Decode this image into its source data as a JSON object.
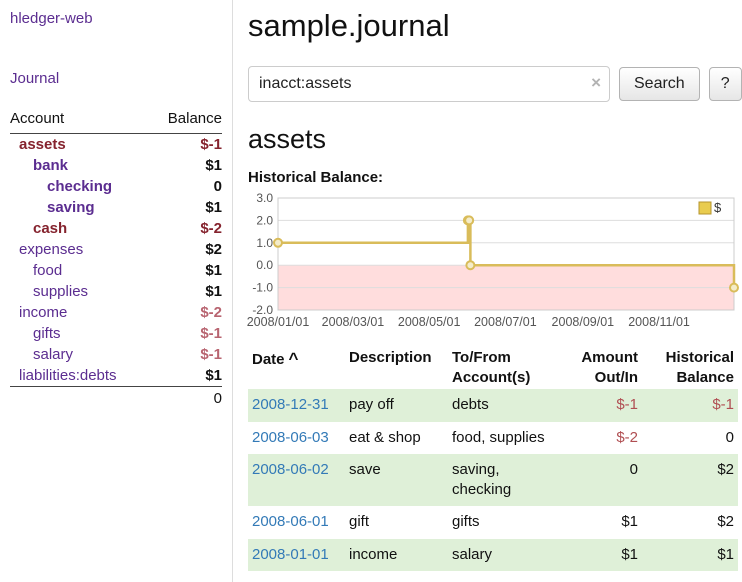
{
  "sidebar": {
    "app_title": "hledger-web",
    "journal_link": "Journal",
    "accounts": {
      "header_account": "Account",
      "header_balance": "Balance",
      "rows": [
        {
          "name": "assets",
          "balance": "$-1",
          "indent": 0,
          "name_class": "acct-sel",
          "bal_class": "bal-neg-strong"
        },
        {
          "name": "bank",
          "balance": "$1",
          "indent": 1,
          "name_class": "acct-bold",
          "bal_class": "bal"
        },
        {
          "name": "checking",
          "balance": "0",
          "indent": 2,
          "name_class": "acct-bold",
          "bal_class": "bal"
        },
        {
          "name": "saving",
          "balance": "$1",
          "indent": 2,
          "name_class": "acct-bold",
          "bal_class": "bal"
        },
        {
          "name": "cash",
          "balance": "$-2",
          "indent": 1,
          "name_class": "acct-sel",
          "bal_class": "bal-neg-strong"
        },
        {
          "name": "expenses",
          "balance": "$2",
          "indent": 0,
          "name_class": "acct",
          "bal_class": "bal"
        },
        {
          "name": "food",
          "balance": "$1",
          "indent": 1,
          "name_class": "acct",
          "bal_class": "bal"
        },
        {
          "name": "supplies",
          "balance": "$1",
          "indent": 1,
          "name_class": "acct",
          "bal_class": "bal"
        },
        {
          "name": "income",
          "balance": "$-2",
          "indent": 0,
          "name_class": "acct",
          "bal_class": "bal-neg"
        },
        {
          "name": "gifts",
          "balance": "$-1",
          "indent": 1,
          "name_class": "acct",
          "bal_class": "bal-neg"
        },
        {
          "name": "salary",
          "balance": "$-1",
          "indent": 1,
          "name_class": "acct",
          "bal_class": "bal-neg"
        },
        {
          "name": "liabilities:debts",
          "balance": "$1",
          "indent": 0,
          "name_class": "acct",
          "bal_class": "bal"
        }
      ],
      "total": "0"
    }
  },
  "main": {
    "title": "sample.journal",
    "search": {
      "value": "inacct:assets",
      "clear_label": "×",
      "button_label": "Search",
      "help_label": "?"
    },
    "account_heading": "assets",
    "chart_label": "Historical Balance:"
  },
  "chart_data": {
    "type": "line",
    "step": true,
    "title": "Historical Balance:",
    "series": [
      {
        "name": "$",
        "points": [
          {
            "date": "2008-01-01",
            "day": 1,
            "value": 1
          },
          {
            "date": "2008-06-01",
            "day": 153,
            "value": 2
          },
          {
            "date": "2008-06-02",
            "day": 154,
            "value": 2
          },
          {
            "date": "2008-06-03",
            "day": 155,
            "value": 0
          },
          {
            "date": "2008-12-31",
            "day": 366,
            "value": -1
          }
        ]
      }
    ],
    "ylim": [
      -2,
      3
    ],
    "yticks": [
      3.0,
      2.0,
      1.0,
      0.0,
      -1.0,
      -2.0
    ],
    "xlim_days": [
      1,
      366
    ],
    "xticks": [
      {
        "label": "2008/01/01",
        "day": 1
      },
      {
        "label": "2008/03/01",
        "day": 61
      },
      {
        "label": "2008/05/01",
        "day": 122
      },
      {
        "label": "2008/07/01",
        "day": 183
      },
      {
        "label": "2008/09/01",
        "day": 245
      },
      {
        "label": "2008/11/01",
        "day": 306
      }
    ],
    "legend_position": "top-right",
    "grid": true,
    "line_color": "#d9bc5a",
    "marker_fill": "#f4ecca",
    "legend_fill": "#e9cc4f",
    "legend_stroke": "#b5952f",
    "negative_region_color": "#ffdddd"
  },
  "register": {
    "sort_caret": "^",
    "headers": [
      {
        "lines": [
          "Date"
        ],
        "align": "left",
        "sorted": true
      },
      {
        "lines": [
          "Description"
        ],
        "align": "left",
        "sorted": false
      },
      {
        "lines": [
          "To/From",
          "Account(s)"
        ],
        "align": "left",
        "sorted": false
      },
      {
        "lines": [
          "Amount",
          "Out/In"
        ],
        "align": "right",
        "sorted": false
      },
      {
        "lines": [
          "Historical",
          "Balance"
        ],
        "align": "right",
        "sorted": false
      }
    ],
    "rows": [
      {
        "date": "2008-12-31",
        "description": "pay off",
        "accounts": "debts",
        "amount": "$-1",
        "amount_negative": true,
        "balance": "$-1",
        "balance_negative": true
      },
      {
        "date": "2008-06-03",
        "description": "eat & shop",
        "accounts": "food, supplies",
        "amount": "$-2",
        "amount_negative": true,
        "balance": "0",
        "balance_negative": false
      },
      {
        "date": "2008-06-02",
        "description": "save",
        "accounts": "saving, checking",
        "amount": "0",
        "amount_negative": false,
        "balance": "$2",
        "balance_negative": false
      },
      {
        "date": "2008-06-01",
        "description": "gift",
        "accounts": "gifts",
        "amount": "$1",
        "amount_negative": false,
        "balance": "$2",
        "balance_negative": false
      },
      {
        "date": "2008-01-01",
        "description": "income",
        "accounts": "salary",
        "amount": "$1",
        "amount_negative": false,
        "balance": "$1",
        "balance_negative": false
      }
    ]
  }
}
